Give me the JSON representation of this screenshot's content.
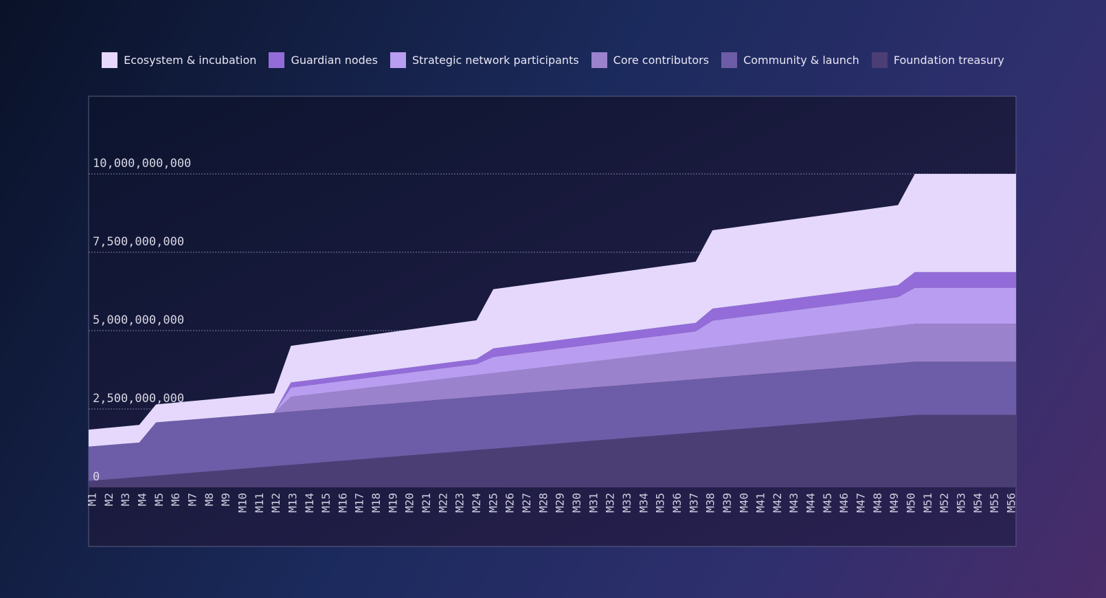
{
  "chart_data": {
    "type": "stacked_area",
    "categories": [
      "M1",
      "M2",
      "M3",
      "M4",
      "M5",
      "M6",
      "M7",
      "M8",
      "M9",
      "M10",
      "M11",
      "M12",
      "M13",
      "M14",
      "M15",
      "M16",
      "M17",
      "M18",
      "M19",
      "M20",
      "M21",
      "M22",
      "M23",
      "M24",
      "M25",
      "M26",
      "M27",
      "M28",
      "M29",
      "M30",
      "M31",
      "M32",
      "M33",
      "M34",
      "M35",
      "M36",
      "M37",
      "M38",
      "M39",
      "M40",
      "M41",
      "M42",
      "M43",
      "M44",
      "M45",
      "M46",
      "M47",
      "M48",
      "M49",
      "M50",
      "M51",
      "M52",
      "M53",
      "M54",
      "M55",
      "M56"
    ],
    "series": [
      {
        "name": "Ecosystem & incubation",
        "color": "#e5d8fc",
        "values": [
          540000000,
          548000000,
          556000000,
          564000000,
          572000000,
          580000000,
          588000000,
          596000000,
          604000000,
          612000000,
          620000000,
          628000000,
          1170000000,
          1176000000,
          1182000000,
          1188000000,
          1194000000,
          1200000000,
          1206000000,
          1212000000,
          1218000000,
          1224000000,
          1230000000,
          1236000000,
          1890000000,
          1895000000,
          1900000000,
          1905000000,
          1910000000,
          1915000000,
          1920000000,
          1925000000,
          1930000000,
          1935000000,
          1940000000,
          1945000000,
          1950000000,
          2500000000,
          2505000000,
          2510000000,
          2515000000,
          2520000000,
          2525000000,
          2530000000,
          2535000000,
          2540000000,
          2545000000,
          2550000000,
          2555000000,
          3133000000,
          3133000000,
          3133000000,
          3133000000,
          3133000000,
          3133000000,
          3133000000
        ]
      },
      {
        "name": "Guardian nodes",
        "color": "#936cd9",
        "values": [
          0,
          0,
          0,
          0,
          0,
          0,
          0,
          0,
          0,
          0,
          0,
          0,
          160000000,
          160000000,
          160000000,
          160000000,
          160000000,
          160000000,
          160000000,
          160000000,
          160000000,
          160000000,
          160000000,
          160000000,
          270000000,
          270000000,
          270000000,
          270000000,
          270000000,
          270000000,
          270000000,
          270000000,
          270000000,
          270000000,
          270000000,
          270000000,
          270000000,
          380000000,
          380000000,
          380000000,
          380000000,
          380000000,
          380000000,
          380000000,
          380000000,
          380000000,
          380000000,
          380000000,
          380000000,
          500000000,
          500000000,
          500000000,
          500000000,
          500000000,
          500000000,
          500000000
        ]
      },
      {
        "name": "Strategic network participants",
        "color": "#b99df0",
        "values": [
          0,
          0,
          0,
          0,
          0,
          0,
          0,
          0,
          0,
          0,
          0,
          0,
          300000000,
          305000000,
          310000000,
          315000000,
          320000000,
          325000000,
          330000000,
          335000000,
          340000000,
          345000000,
          350000000,
          355000000,
          520000000,
          525000000,
          530000000,
          535000000,
          540000000,
          545000000,
          550000000,
          555000000,
          560000000,
          565000000,
          570000000,
          575000000,
          580000000,
          860000000,
          865000000,
          870000000,
          875000000,
          880000000,
          885000000,
          890000000,
          895000000,
          900000000,
          905000000,
          910000000,
          915000000,
          1150000000,
          1150000000,
          1150000000,
          1150000000,
          1150000000,
          1150000000,
          1150000000
        ]
      },
      {
        "name": "Core contributors",
        "color": "#9b82cd",
        "values": [
          0,
          0,
          0,
          0,
          0,
          0,
          0,
          0,
          0,
          0,
          0,
          0,
          470000000,
          490000000,
          510000000,
          530000000,
          550000000,
          570000000,
          590000000,
          610000000,
          630000000,
          650000000,
          670000000,
          690000000,
          710000000,
          730000000,
          750000000,
          770000000,
          790000000,
          810000000,
          830000000,
          850000000,
          870000000,
          890000000,
          910000000,
          930000000,
          950000000,
          970000000,
          990000000,
          1010000000,
          1030000000,
          1050000000,
          1070000000,
          1090000000,
          1110000000,
          1130000000,
          1150000000,
          1170000000,
          1190000000,
          1210000000,
          1210000000,
          1210000000,
          1210000000,
          1210000000,
          1210000000,
          1210000000
        ]
      },
      {
        "name": "Community & launch",
        "color": "#6d5ca7",
        "values": [
          1100000000,
          1100000000,
          1100000000,
          1100000000,
          1700000000,
          1700000000,
          1700000000,
          1700000000,
          1700000000,
          1700000000,
          1700000000,
          1700000000,
          1700000000,
          1700000000,
          1700000000,
          1700000000,
          1700000000,
          1700000000,
          1700000000,
          1700000000,
          1700000000,
          1700000000,
          1700000000,
          1700000000,
          1700000000,
          1700000000,
          1700000000,
          1700000000,
          1700000000,
          1700000000,
          1700000000,
          1700000000,
          1700000000,
          1700000000,
          1700000000,
          1700000000,
          1700000000,
          1700000000,
          1700000000,
          1700000000,
          1700000000,
          1700000000,
          1700000000,
          1700000000,
          1700000000,
          1700000000,
          1700000000,
          1700000000,
          1700000000,
          1700000000,
          1700000000,
          1700000000,
          1700000000,
          1700000000,
          1700000000,
          1700000000
        ]
      },
      {
        "name": "Foundation treasury",
        "color": "#4a3e74",
        "values": [
          200000000,
          243000000,
          286000000,
          329000000,
          372000000,
          415000000,
          458000000,
          501000000,
          544000000,
          587000000,
          630000000,
          673000000,
          716000000,
          759000000,
          802000000,
          845000000,
          888000000,
          931000000,
          974000000,
          1017000000,
          1060000000,
          1103000000,
          1146000000,
          1189000000,
          1232000000,
          1275000000,
          1318000000,
          1361000000,
          1404000000,
          1447000000,
          1490000000,
          1533000000,
          1576000000,
          1619000000,
          1662000000,
          1705000000,
          1748000000,
          1791000000,
          1834000000,
          1877000000,
          1920000000,
          1963000000,
          2006000000,
          2049000000,
          2092000000,
          2135000000,
          2178000000,
          2221000000,
          2264000000,
          2307000000,
          2307000000,
          2307000000,
          2307000000,
          2307000000,
          2307000000,
          2307000000
        ]
      }
    ],
    "ylim": [
      0,
      12500000000
    ],
    "yticks": [
      0,
      {
        "value": 2500000000,
        "label": "2,500,000,000"
      },
      {
        "value": 5000000000,
        "label": "5,000,000,000"
      },
      {
        "value": 7500000000,
        "label": "7,500,000,000"
      },
      {
        "value": 10000000000,
        "label": "10,000,000,000"
      }
    ],
    "grid": true,
    "legend": "top"
  }
}
